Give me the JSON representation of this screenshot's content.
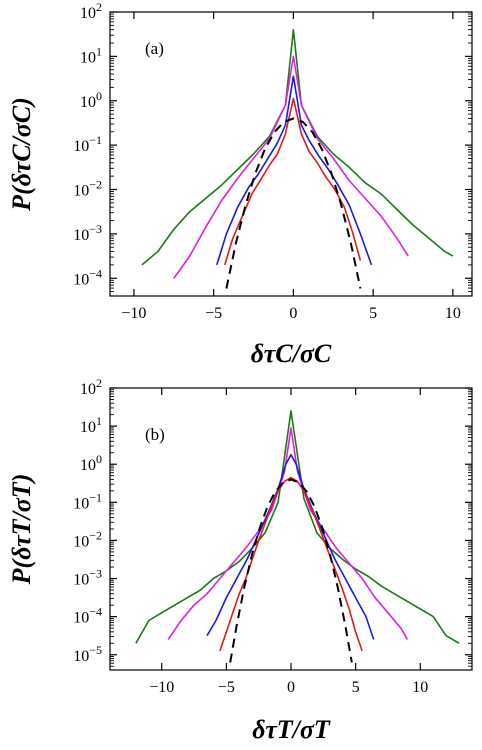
{
  "chart_data": [
    {
      "type": "line",
      "panel_label": "(a)",
      "xlabel": "δτC/σC",
      "ylabel": "P(δτC/σC)",
      "xlim": [
        -11.5,
        11.2
      ],
      "ylim": [
        -4.4,
        2
      ],
      "yscale": "log",
      "xticks": [
        -10,
        -5,
        0,
        5,
        10
      ],
      "xtick_labels": [
        "−10",
        "−5",
        "0",
        "5",
        "10"
      ],
      "yticks": [
        -4,
        -3,
        -2,
        -1,
        0,
        1,
        2
      ],
      "ytick_base": "10",
      "ytick_exps": [
        "−4",
        "−3",
        "−2",
        "−1",
        "0",
        "1",
        "2"
      ],
      "grid": false,
      "series": [
        {
          "color": "#1a7a1a",
          "style": "solid",
          "x": [
            -9.5,
            -8.5,
            -7.5,
            -6.5,
            -5.5,
            -4.5,
            -3.5,
            -2.5,
            -1.5,
            -0.5,
            0,
            0.5,
            1.5,
            2.5,
            3.5,
            4.5,
            5.5,
            6.5,
            7.5,
            8.5,
            9.5,
            10
          ],
          "log10_y": [
            -3.7,
            -3.4,
            -2.9,
            -2.5,
            -2.2,
            -1.9,
            -1.55,
            -1.2,
            -0.8,
            -0.1,
            1.6,
            -0.1,
            -0.8,
            -1.2,
            -1.5,
            -1.85,
            -2.1,
            -2.45,
            -2.8,
            -3.1,
            -3.4,
            -3.5
          ]
        },
        {
          "color": "#e020e0",
          "style": "solid",
          "x": [
            -7.5,
            -6.5,
            -5.5,
            -4.5,
            -3.5,
            -2.5,
            -1.5,
            -0.5,
            0,
            0.5,
            1.5,
            2.5,
            3.5,
            4.5,
            5.5,
            6.5,
            7.2
          ],
          "log10_y": [
            -4.0,
            -3.5,
            -2.85,
            -2.25,
            -1.75,
            -1.3,
            -0.85,
            -0.1,
            1.0,
            -0.1,
            -0.85,
            -1.3,
            -1.8,
            -2.2,
            -2.6,
            -3.1,
            -3.5
          ]
        },
        {
          "color": "#1a1ae0",
          "style": "solid",
          "x": [
            -4.8,
            -4.2,
            -3.5,
            -2.8,
            -2.2,
            -1.6,
            -1.0,
            -0.5,
            0,
            0.5,
            1.0,
            1.6,
            2.2,
            2.8,
            3.5,
            4.2,
            4.9
          ],
          "log10_y": [
            -3.7,
            -3.0,
            -2.4,
            -1.95,
            -1.65,
            -1.3,
            -0.95,
            -0.55,
            0.55,
            -0.55,
            -0.9,
            -1.25,
            -1.55,
            -1.9,
            -2.35,
            -3.0,
            -3.7
          ]
        },
        {
          "color": "#e01a1a",
          "style": "solid",
          "x": [
            -4.3,
            -3.8,
            -3.2,
            -2.6,
            -2.0,
            -1.5,
            -1.0,
            -0.5,
            0,
            0.5,
            1.0,
            1.5,
            2.0,
            2.6,
            3.2,
            3.7,
            4.2
          ],
          "log10_y": [
            -3.7,
            -3.1,
            -2.6,
            -2.1,
            -1.75,
            -1.45,
            -1.2,
            -0.75,
            0.05,
            -0.75,
            -1.15,
            -1.4,
            -1.7,
            -2.0,
            -2.4,
            -2.95,
            -3.6
          ]
        },
        {
          "color": "#000000",
          "style": "dashed",
          "x": [
            -4.2,
            -3.6,
            -3.0,
            -2.4,
            -1.8,
            -1.2,
            -0.6,
            0,
            0.6,
            1.2,
            1.8,
            2.4,
            3.0,
            3.6,
            4.2
          ],
          "log10_y": [
            -4.23,
            -3.2,
            -2.35,
            -1.65,
            -1.1,
            -0.71,
            -0.48,
            -0.4,
            -0.48,
            -0.71,
            -1.1,
            -1.65,
            -2.35,
            -3.2,
            -4.23
          ]
        }
      ]
    },
    {
      "type": "line",
      "panel_label": "(b)",
      "xlabel": "δτT/σT",
      "ylabel": "P(δτT/σT)",
      "xlim": [
        -14,
        14
      ],
      "ylim": [
        -5.4,
        2
      ],
      "yscale": "log",
      "xticks": [
        -10,
        -5,
        0,
        5,
        10
      ],
      "xtick_labels": [
        "−10",
        "−5",
        "0",
        "5",
        "10"
      ],
      "yticks": [
        -5,
        -4,
        -3,
        -2,
        -1,
        0,
        1,
        2
      ],
      "ytick_base": "10",
      "ytick_exps": [
        "−5",
        "−4",
        "−3",
        "−2",
        "−1",
        "0",
        "1",
        "2"
      ],
      "grid": false,
      "series": [
        {
          "color": "#1a7a1a",
          "style": "solid",
          "x": [
            -12,
            -11,
            -10,
            -9,
            -8,
            -7,
            -6,
            -5,
            -4,
            -3,
            -2,
            -1,
            0,
            1,
            2,
            3,
            4,
            5,
            6,
            7,
            8,
            9,
            10,
            11,
            12,
            13
          ],
          "log10_y": [
            -4.7,
            -4.1,
            -3.9,
            -3.7,
            -3.5,
            -3.3,
            -3.0,
            -2.8,
            -2.55,
            -2.2,
            -1.8,
            -1.0,
            1.4,
            -0.9,
            -1.8,
            -2.2,
            -2.5,
            -2.75,
            -2.95,
            -3.2,
            -3.4,
            -3.6,
            -3.8,
            -4.0,
            -4.5,
            -4.7
          ]
        },
        {
          "color": "#e020e0",
          "style": "solid",
          "x": [
            -9.5,
            -8.5,
            -7.5,
            -6.5,
            -5.5,
            -4.5,
            -3.5,
            -2.5,
            -1.5,
            -0.5,
            0,
            0.5,
            1.5,
            2.5,
            3.5,
            4.5,
            5.5,
            6.5,
            7.5,
            8.5,
            9
          ],
          "log10_y": [
            -4.6,
            -4.1,
            -3.7,
            -3.4,
            -3.0,
            -2.6,
            -2.2,
            -1.75,
            -1.2,
            -0.2,
            0.95,
            -0.2,
            -1.2,
            -1.7,
            -2.2,
            -2.6,
            -3.0,
            -3.5,
            -3.9,
            -4.3,
            -4.6
          ]
        },
        {
          "color": "#1a1ae0",
          "style": "solid",
          "x": [
            -6.5,
            -5.8,
            -5.0,
            -4.2,
            -3.4,
            -2.6,
            -1.8,
            -1.0,
            -0.4,
            0,
            0.4,
            1.0,
            1.8,
            2.6,
            3.4,
            4.2,
            5.0,
            5.8,
            6.4
          ],
          "log10_y": [
            -4.5,
            -4.1,
            -3.5,
            -3.0,
            -2.5,
            -1.9,
            -1.3,
            -0.65,
            0.0,
            0.25,
            0.0,
            -0.65,
            -1.3,
            -1.9,
            -2.5,
            -3.0,
            -3.5,
            -4.0,
            -4.6
          ]
        },
        {
          "color": "#e01a1a",
          "style": "solid",
          "x": [
            -5.5,
            -5.0,
            -4.5,
            -4.0,
            -3.5,
            -3.0,
            -2.5,
            -2.0,
            -1.5,
            -1.0,
            -0.5,
            0,
            0.5,
            1.0,
            1.5,
            2.0,
            2.5,
            3.0,
            3.5,
            4.0,
            4.5,
            5.0,
            5.5
          ],
          "log10_y": [
            -4.9,
            -4.4,
            -3.9,
            -3.4,
            -3.0,
            -2.5,
            -2.0,
            -1.55,
            -1.1,
            -0.7,
            -0.45,
            -0.35,
            -0.45,
            -0.7,
            -1.1,
            -1.5,
            -1.95,
            -2.4,
            -2.85,
            -3.3,
            -3.8,
            -4.4,
            -4.9
          ]
        },
        {
          "color": "#000000",
          "style": "dashed",
          "x": [
            -4.7,
            -4.2,
            -3.6,
            -3.0,
            -2.4,
            -1.8,
            -1.2,
            -0.6,
            0,
            0.6,
            1.2,
            1.8,
            2.4,
            3.0,
            3.6,
            4.2,
            4.7
          ],
          "log10_y": [
            -5.2,
            -4.23,
            -3.2,
            -2.35,
            -1.65,
            -1.1,
            -0.71,
            -0.48,
            -0.4,
            -0.48,
            -0.71,
            -1.1,
            -1.65,
            -2.35,
            -3.2,
            -4.23,
            -5.2
          ]
        }
      ]
    }
  ]
}
